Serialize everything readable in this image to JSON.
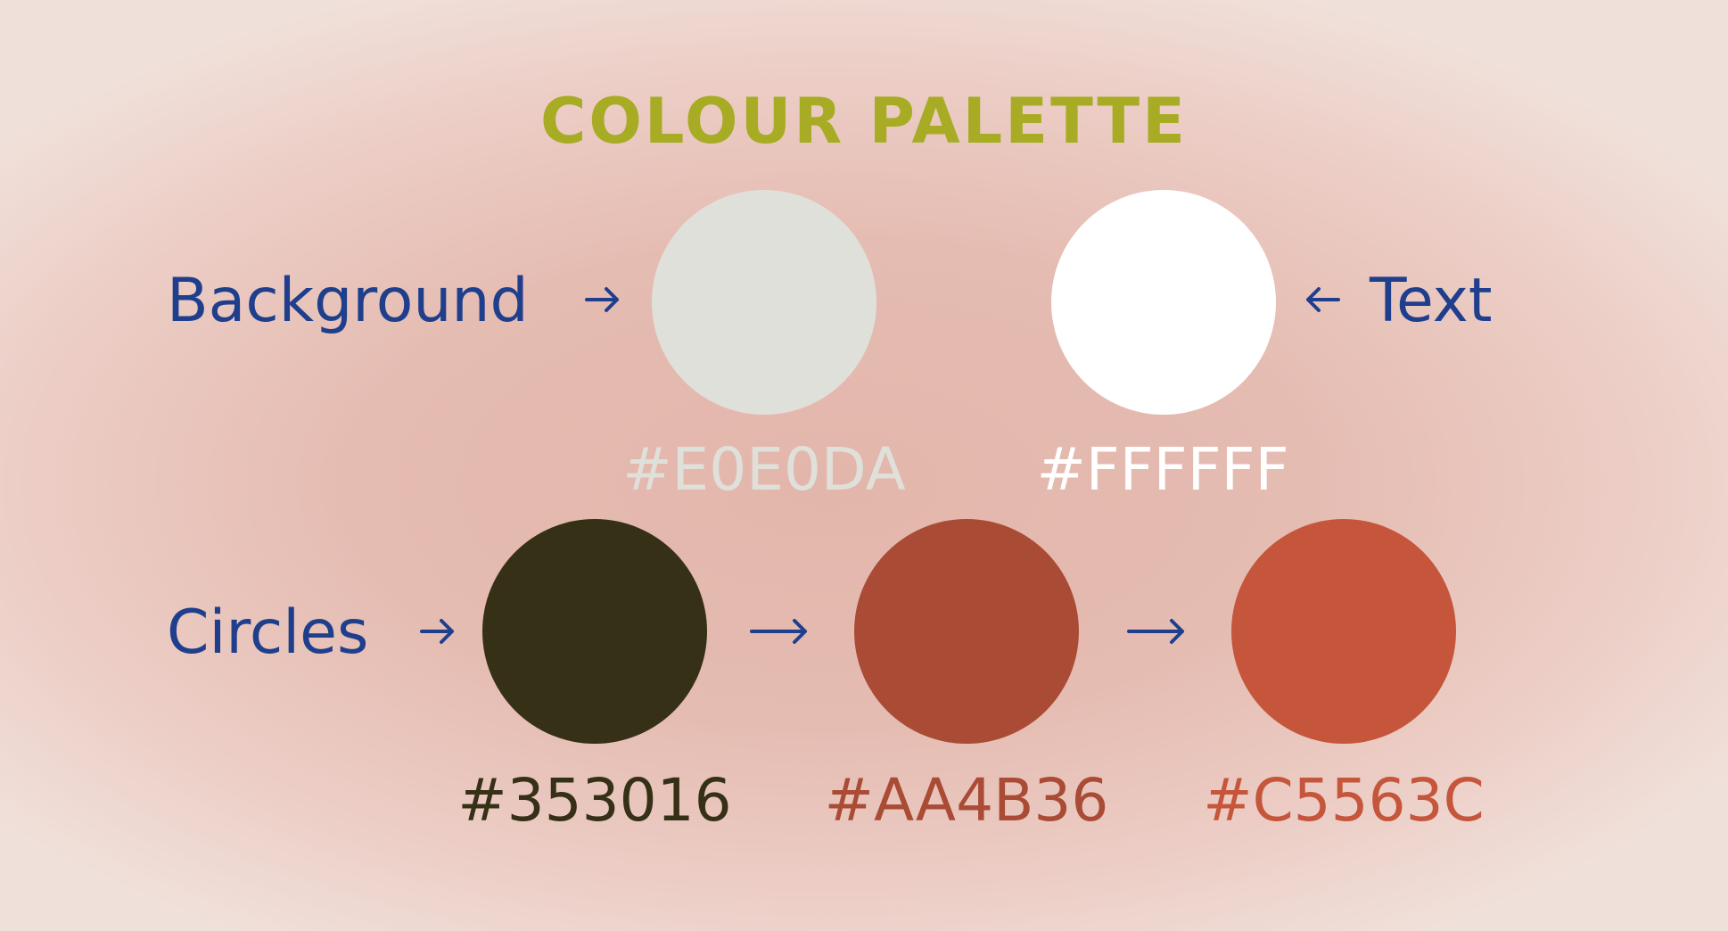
{
  "title": "COLOUR PALETTE",
  "title_color": "#A7AC24",
  "label_color": "#1F3F8D",
  "labels": {
    "background": "Background",
    "text": "Text",
    "circles": "Circles"
  },
  "arrows": {
    "background": "arrow-right",
    "text": "arrow-left",
    "circles_1": "arrow-right",
    "circles_2": "arrow-right",
    "circles_3": "arrow-right"
  },
  "swatches": {
    "background": {
      "hex": "#E0E0DA",
      "color": "#E0E0DA"
    },
    "text": {
      "hex": "#FFFFFF",
      "color": "#FFFFFF"
    },
    "circle_1": {
      "hex": "#353016",
      "color": "#353016"
    },
    "circle_2": {
      "hex": "#AA4B36",
      "color": "#AA4B36"
    },
    "circle_3": {
      "hex": "#C5563C",
      "color": "#C5563C"
    }
  }
}
